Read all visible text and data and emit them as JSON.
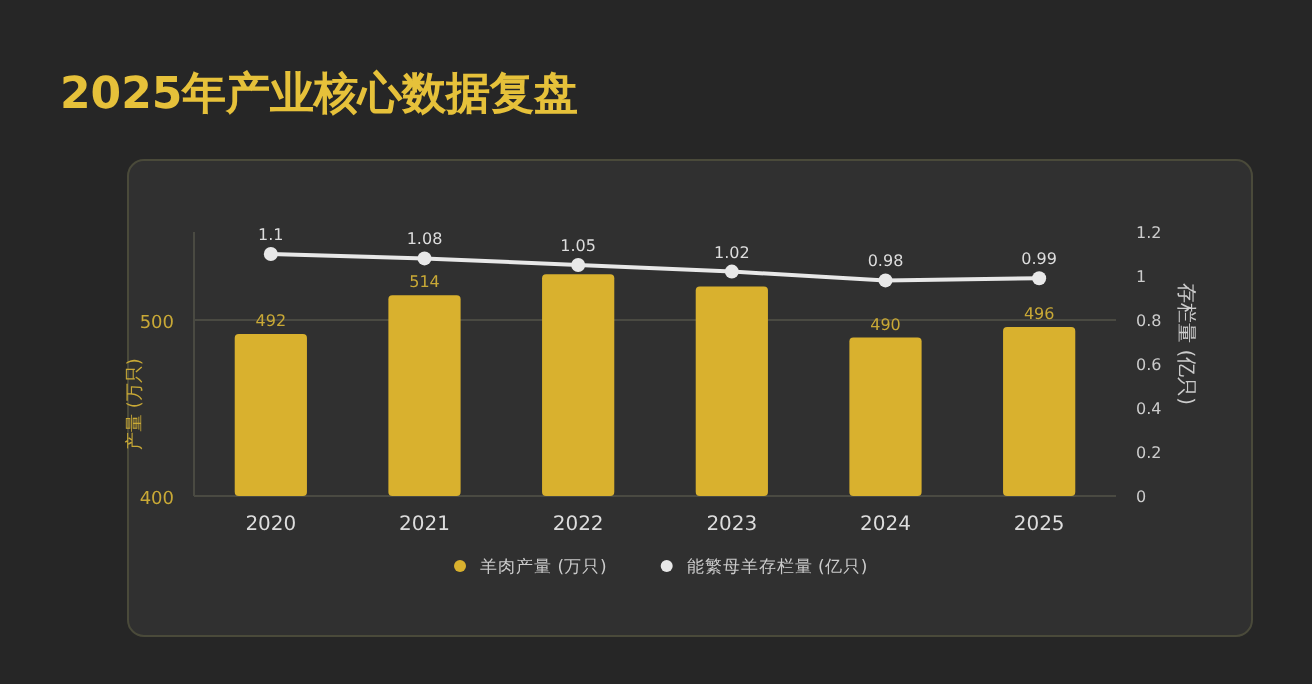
{
  "chart_data": {
    "type": "bar",
    "title": "2025年产业核心数据复盘",
    "ylabel": "产量 (万只)",
    "y2label": "存栏量 (亿只)",
    "categories": [
      "2020",
      "2021",
      "2022",
      "2023",
      "2024",
      "2025"
    ],
    "series": [
      {
        "name": "羊肉产量 (万只)",
        "color": "#d9b12e",
        "values": [
          492,
          514,
          526,
          519,
          490,
          496
        ],
        "value_labels": [
          "492",
          "514",
          null,
          null,
          "490",
          "496"
        ]
      },
      {
        "name": "能繁母羊存栏量 (亿只)",
        "type": "line",
        "axis": "y2",
        "color": "#e8e8e8",
        "marker": "circle",
        "values": [
          1.1,
          1.08,
          1.05,
          1.02,
          0.98,
          0.99
        ],
        "value_labels": [
          "1.1",
          "1.08",
          "1.05",
          "1.02",
          "0.98",
          "0.99"
        ]
      }
    ],
    "ylim": [
      400,
      550
    ],
    "yticks": [
      400,
      500
    ],
    "y2lim": [
      0,
      1.2
    ],
    "y2ticks": [
      0,
      0.2,
      0.4,
      0.6,
      0.8,
      1,
      1.2
    ],
    "grid": "y",
    "legend": "bottom"
  }
}
